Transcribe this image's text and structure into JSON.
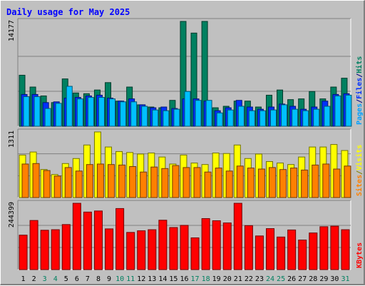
{
  "chart_data": {
    "type": "bar",
    "title": "Daily usage for May 2025",
    "categories": [
      "1",
      "2",
      "3",
      "4",
      "5",
      "6",
      "7",
      "8",
      "9",
      "10",
      "11",
      "12",
      "13",
      "14",
      "15",
      "16",
      "17",
      "18",
      "19",
      "20",
      "21",
      "22",
      "23",
      "24",
      "25",
      "26",
      "27",
      "28",
      "29",
      "30",
      "31"
    ],
    "weekend_days": [
      "3",
      "4",
      "10",
      "11",
      "17",
      "18",
      "24",
      "25",
      "31"
    ],
    "panels": [
      {
        "id": "hits",
        "ymax_label": "14177",
        "ymax": 14177,
        "right_labels": [
          {
            "text": "Pages",
            "color": "#00a0ff"
          },
          {
            "text": "/",
            "color": "#000080"
          },
          {
            "text": "Files",
            "color": "#0030ff"
          },
          {
            "text": "/",
            "color": "#000080"
          },
          {
            "text": "Hits",
            "color": "#008060"
          }
        ],
        "series": [
          {
            "name": "Hits",
            "color": "#008060",
            "values": [
              6900,
              5300,
              4100,
              3200,
              6400,
              4500,
              4400,
              4900,
              5900,
              3400,
              5300,
              2900,
              2600,
              2500,
              3500,
              14177,
              12600,
              14177,
              2500,
              2700,
              3400,
              3400,
              2600,
              4200,
              4900,
              3600,
              3700,
              4700,
              3700,
              5300,
              6500
            ]
          },
          {
            "name": "Files",
            "color": "#0030ff",
            "values": [
              4300,
              4300,
              3200,
              3300,
              3800,
              3900,
              4100,
              4200,
              3800,
              3400,
              3700,
              2900,
              2500,
              2600,
              2400,
              3700,
              3700,
              3400,
              2100,
              2500,
              3500,
              2600,
              2300,
              2600,
              3000,
              2700,
              2300,
              2600,
              3400,
              4300,
              4400
            ]
          },
          {
            "name": "Pages",
            "color": "#00c0ff",
            "values": [
              4000,
              4000,
              2400,
              3100,
              5400,
              3700,
              3900,
              3900,
              3700,
              3300,
              3300,
              2700,
              2200,
              2100,
              2300,
              4700,
              3500,
              3500,
              1800,
              2200,
              2700,
              2100,
              2100,
              2200,
              2900,
              2300,
              2100,
              2300,
              2700,
              4100,
              4200
            ]
          }
        ]
      },
      {
        "id": "visits",
        "ymax_label": "1311",
        "ymax": 1311,
        "right_labels": [
          {
            "text": "Sites",
            "color": "#ff8000"
          },
          {
            "text": "/",
            "color": "#808000"
          },
          {
            "text": "Visits",
            "color": "#ffff00"
          }
        ],
        "series": [
          {
            "name": "Visits",
            "color": "#ffff00",
            "values": [
              850,
              910,
              560,
              460,
              680,
              780,
              1050,
              1311,
              1010,
              920,
              900,
              870,
              890,
              810,
              670,
              850,
              690,
              660,
              890,
              880,
              1050,
              780,
              870,
              720,
              690,
              660,
              810,
              1010,
              1010,
              1060,
              940
            ]
          },
          {
            "name": "Sites",
            "color": "#ff8000",
            "values": [
              670,
              680,
              540,
              430,
              600,
              530,
              660,
              670,
              660,
              650,
              620,
              510,
              610,
              580,
              640,
              600,
              600,
              510,
              590,
              530,
              630,
              590,
              570,
              600,
              560,
              590,
              550,
              650,
              670,
              570,
              630
            ]
          }
        ]
      },
      {
        "id": "kbytes",
        "ymax_label": "244399",
        "ymax": 244399,
        "right_labels": [
          {
            "text": "KBytes",
            "color": "#ff0000"
          }
        ],
        "series": [
          {
            "name": "KBytes",
            "color": "#ff0000",
            "values": [
              127000,
              181000,
              145000,
              147000,
              166000,
              244399,
              212000,
              216000,
              150000,
              225000,
              137000,
              143000,
              147000,
              182000,
              155000,
              163000,
              117000,
              188000,
              180000,
              172000,
              244399,
              162000,
              124000,
              151000,
              120000,
              146000,
              109000,
              135000,
              158000,
              160000,
              147000
            ]
          }
        ]
      }
    ],
    "grid": true
  }
}
